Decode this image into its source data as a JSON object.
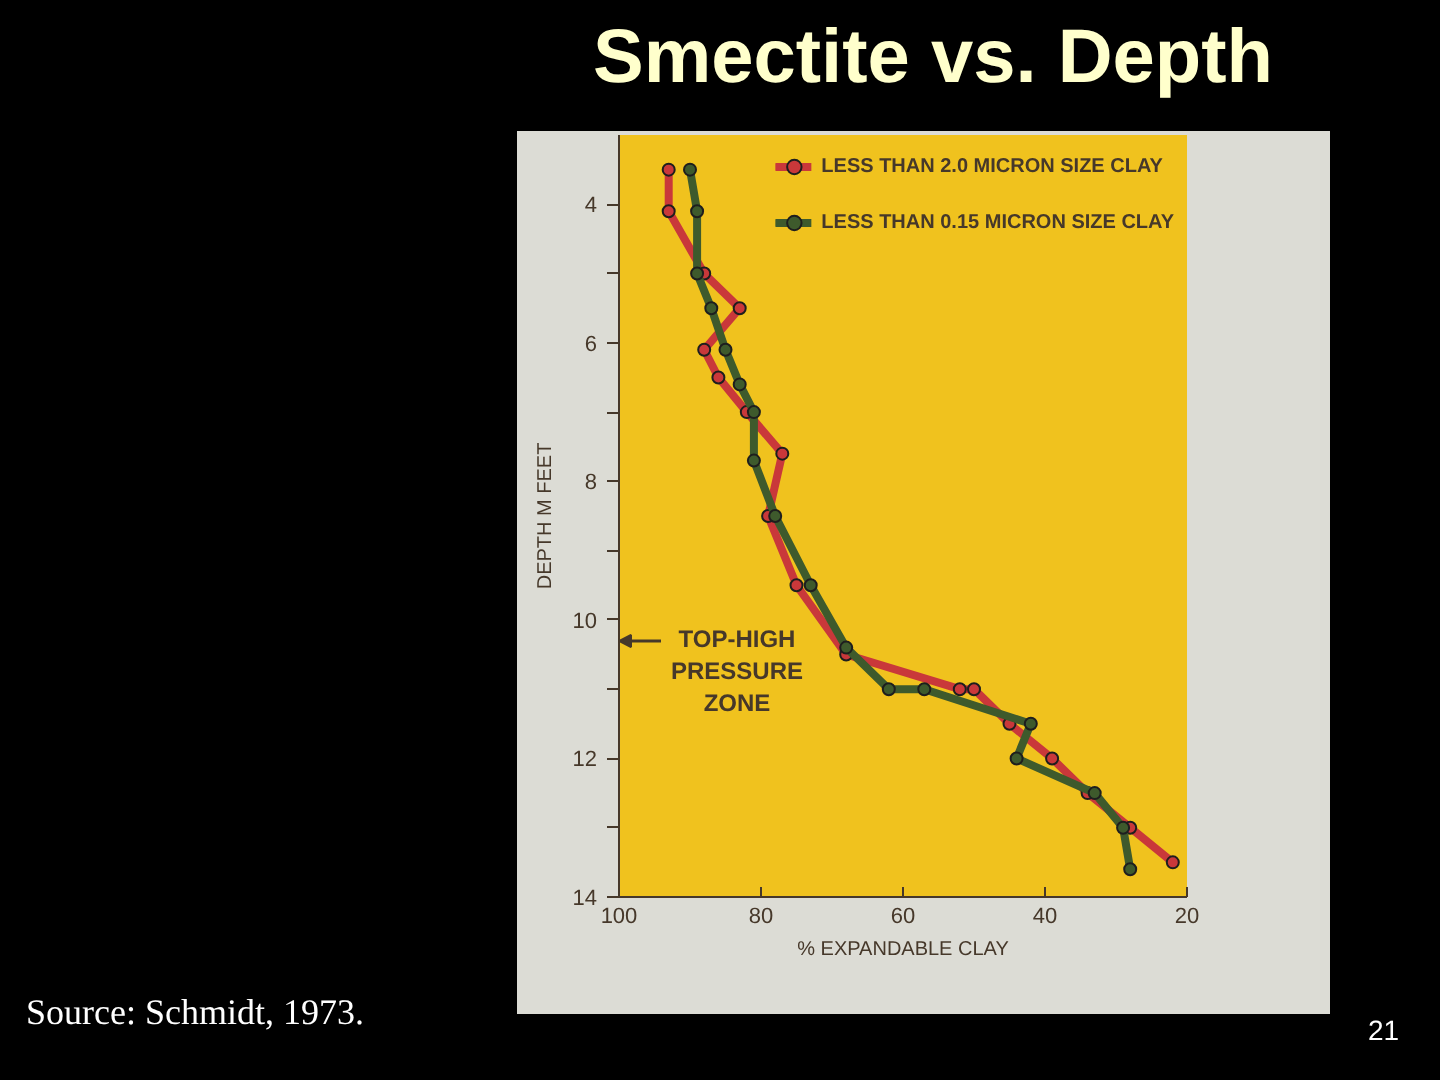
{
  "chart_data": {
    "type": "line",
    "title": "Smectite vs. Depth",
    "xlabel": "% EXPANDABLE CLAY",
    "ylabel": "DEPTH M FEET",
    "xlim": [
      100,
      20
    ],
    "xticks": [
      100,
      80,
      60,
      40,
      20
    ],
    "ylim": [
      14,
      3
    ],
    "yticks": [
      4,
      {
        "value": 5,
        "label": null
      },
      6,
      {
        "value": 7,
        "label": null
      },
      8,
      {
        "value": 9,
        "label": null
      },
      10,
      {
        "value": 11,
        "label": null
      },
      12,
      {
        "value": 13,
        "label": null
      },
      14
    ],
    "grid": false,
    "legend": "top right",
    "marker": "circle",
    "line_style": "solid",
    "series": [
      {
        "name": "LESS THAN 2.0 MICRON SIZE CLAY",
        "color": "#c9383a",
        "x": [
          93,
          93,
          88,
          83,
          88,
          86,
          82,
          77,
          79,
          75,
          68,
          52,
          50,
          45,
          39,
          34,
          28,
          22
        ],
        "values": [
          3.5,
          4.1,
          5.0,
          5.5,
          6.1,
          6.5,
          7.0,
          7.6,
          8.5,
          9.5,
          10.5,
          11.0,
          11.0,
          11.5,
          12.0,
          12.5,
          13.0,
          13.5
        ]
      },
      {
        "name": "LESS THAN 0.15 MICRON SIZE CLAY",
        "color": "#3e5a2c",
        "x": [
          90,
          89,
          89,
          87,
          85,
          83,
          81,
          81,
          78,
          73,
          68,
          62,
          57,
          42,
          44,
          33,
          29,
          28
        ],
        "values": [
          3.5,
          4.1,
          5.0,
          5.5,
          6.1,
          6.6,
          7.0,
          7.7,
          8.5,
          9.5,
          10.4,
          11.0,
          11.0,
          11.5,
          12.0,
          12.5,
          13.0,
          13.6
        ]
      }
    ],
    "annotations": [
      "TOP-HIGH PRESSURE ZONE",
      "Source: Schmidt, 1973.",
      "21"
    ]
  }
}
